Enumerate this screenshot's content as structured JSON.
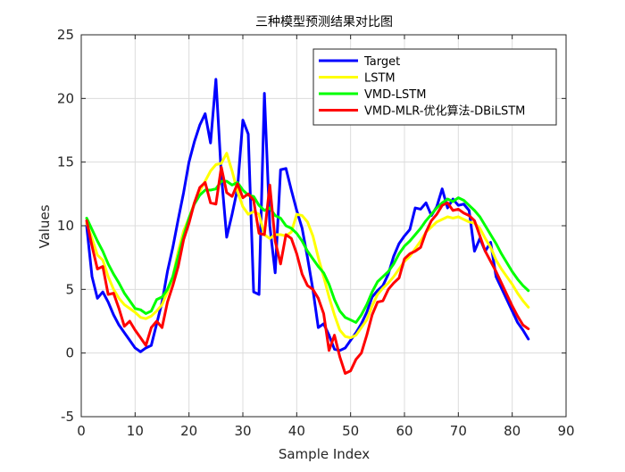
{
  "chart_data": {
    "type": "line",
    "title": "三种模型预测结果对比图",
    "xlabel": "Sample Index",
    "ylabel": "Values",
    "xlim": [
      0,
      90
    ],
    "ylim": [
      -5,
      25
    ],
    "xticks": [
      0,
      10,
      20,
      30,
      40,
      50,
      60,
      70,
      80,
      90
    ],
    "yticks": [
      -5,
      0,
      5,
      10,
      15,
      20,
      25
    ],
    "grid": true,
    "legend_position": "top-right",
    "x": [
      1,
      2,
      3,
      4,
      5,
      6,
      7,
      8,
      9,
      10,
      11,
      12,
      13,
      14,
      15,
      16,
      17,
      18,
      19,
      20,
      21,
      22,
      23,
      24,
      25,
      26,
      27,
      28,
      29,
      30,
      31,
      32,
      33,
      34,
      35,
      36,
      37,
      38,
      39,
      40,
      41,
      42,
      43,
      44,
      45,
      46,
      47,
      48,
      49,
      50,
      51,
      52,
      53,
      54,
      55,
      56,
      57,
      58,
      59,
      60,
      61,
      62,
      63,
      64,
      65,
      66,
      67,
      68,
      69,
      70,
      71,
      72,
      73,
      74,
      75,
      76,
      77,
      78,
      79,
      80,
      81,
      82,
      83
    ],
    "series": [
      {
        "name": "Target",
        "color": "#0000ff",
        "values": [
          10.0,
          6.0,
          4.3,
          4.8,
          4.0,
          3.0,
          2.2,
          1.6,
          1.0,
          0.4,
          0.1,
          0.4,
          0.6,
          2.3,
          4.0,
          6.4,
          8.3,
          10.5,
          12.6,
          15.0,
          16.6,
          17.9,
          18.8,
          16.5,
          21.5,
          14.0,
          9.1,
          10.9,
          12.9,
          18.3,
          17.2,
          4.8,
          4.6,
          20.4,
          10.0,
          6.3,
          14.4,
          14.5,
          12.8,
          11.2,
          9.8,
          7.5,
          5.0,
          2.0,
          2.3,
          1.4,
          0.3,
          0.2,
          0.4,
          1.0,
          1.6,
          2.3,
          3.2,
          4.4,
          4.9,
          5.3,
          6.2,
          7.6,
          8.6,
          9.2,
          9.7,
          11.4,
          11.3,
          11.8,
          10.8,
          11.5,
          12.9,
          11.4,
          12.1,
          11.6,
          11.7,
          11.2,
          8.0,
          9.0,
          8.0,
          8.7,
          6.0,
          5.1,
          4.2,
          3.3,
          2.4,
          1.8,
          1.1
        ]
      },
      {
        "name": "LSTM",
        "color": "#ffff00",
        "values": [
          10.2,
          9.0,
          7.7,
          7.3,
          6.0,
          5.0,
          4.3,
          3.8,
          3.5,
          3.2,
          2.8,
          2.7,
          2.9,
          3.3,
          3.8,
          4.8,
          6.0,
          8.0,
          9.6,
          10.6,
          11.8,
          12.7,
          13.5,
          14.3,
          14.8,
          14.9,
          15.7,
          14.3,
          12.7,
          11.5,
          10.9,
          11.1,
          10.9,
          9.3,
          9.0,
          9.3,
          9.3,
          9.2,
          9.5,
          10.9,
          10.8,
          10.3,
          9.2,
          7.5,
          6.0,
          4.4,
          3.0,
          1.8,
          1.3,
          1.2,
          1.4,
          2.0,
          2.6,
          3.7,
          4.6,
          5.1,
          5.5,
          6.0,
          6.6,
          7.2,
          7.6,
          8.2,
          8.8,
          9.5,
          9.9,
          10.3,
          10.5,
          10.7,
          10.6,
          10.7,
          10.5,
          10.3,
          10.2,
          9.8,
          9.0,
          8.3,
          7.3,
          6.6,
          6.0,
          5.4,
          4.7,
          4.1,
          3.6
        ]
      },
      {
        "name": "VMD-LSTM",
        "color": "#00ff00",
        "values": [
          10.6,
          9.7,
          8.8,
          8.0,
          7.0,
          6.2,
          5.5,
          4.7,
          4.1,
          3.5,
          3.4,
          3.1,
          3.3,
          4.2,
          4.4,
          5.0,
          6.0,
          7.6,
          9.2,
          10.6,
          11.7,
          12.4,
          12.8,
          12.8,
          12.9,
          13.5,
          13.5,
          13.2,
          13.4,
          12.8,
          12.4,
          12.3,
          11.6,
          11.2,
          11.4,
          10.8,
          10.6,
          10.0,
          9.8,
          9.4,
          8.8,
          8.0,
          7.4,
          6.8,
          6.3,
          5.4,
          4.2,
          3.3,
          2.8,
          2.6,
          2.4,
          3.0,
          3.8,
          4.8,
          5.6,
          6.0,
          6.4,
          7.0,
          7.8,
          8.4,
          8.8,
          9.3,
          9.8,
          10.4,
          10.9,
          11.4,
          11.8,
          12.1,
          11.9,
          12.2,
          12.0,
          11.6,
          11.2,
          10.7,
          10.0,
          9.3,
          8.6,
          7.8,
          7.1,
          6.4,
          5.8,
          5.3,
          4.9
        ]
      },
      {
        "name": "VMD-MLR-优化算法-DBiLSTM",
        "color": "#ff0000",
        "values": [
          10.4,
          8.4,
          6.6,
          6.8,
          4.6,
          4.7,
          3.5,
          2.1,
          2.5,
          1.8,
          1.2,
          0.6,
          2.0,
          2.5,
          2.0,
          4.0,
          5.3,
          6.8,
          8.9,
          10.2,
          11.8,
          13.0,
          13.4,
          11.8,
          11.7,
          14.6,
          12.6,
          12.3,
          13.3,
          12.2,
          12.5,
          12.0,
          9.4,
          9.3,
          13.2,
          8.8,
          7.0,
          9.3,
          9.0,
          7.8,
          6.2,
          5.3,
          5.0,
          4.3,
          3.1,
          0.2,
          1.4,
          -0.3,
          -1.6,
          -1.4,
          -0.5,
          0.0,
          1.4,
          3.0,
          4.0,
          4.1,
          5.0,
          5.5,
          5.9,
          7.4,
          7.8,
          8.0,
          8.3,
          9.5,
          10.4,
          10.9,
          11.6,
          11.8,
          11.2,
          11.3,
          11.0,
          10.8,
          10.4,
          9.2,
          8.0,
          7.2,
          6.4,
          5.5,
          4.6,
          3.7,
          2.9,
          2.2,
          1.9
        ]
      }
    ]
  }
}
